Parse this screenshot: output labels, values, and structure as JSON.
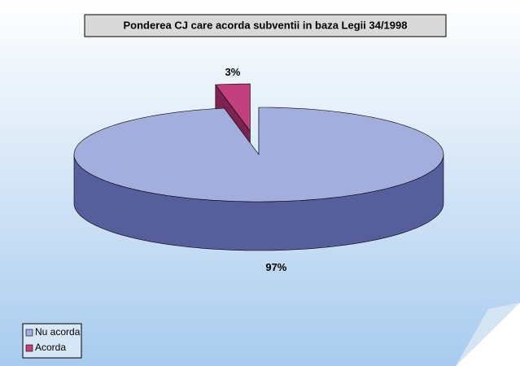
{
  "chart_data": {
    "type": "pie",
    "title": "Ponderea CJ care acorda subventii in baza Legii 34/1998",
    "categories": [
      "Nu acorda",
      "Acorda"
    ],
    "values": [
      97,
      3
    ],
    "value_labels": [
      "97%",
      "3%"
    ],
    "colors": [
      "#a3aedd",
      "#c2407e"
    ],
    "side_colors": [
      "#565f9c",
      "#7c2352"
    ],
    "explode": [
      false,
      true
    ],
    "legend": "bottom-left"
  }
}
